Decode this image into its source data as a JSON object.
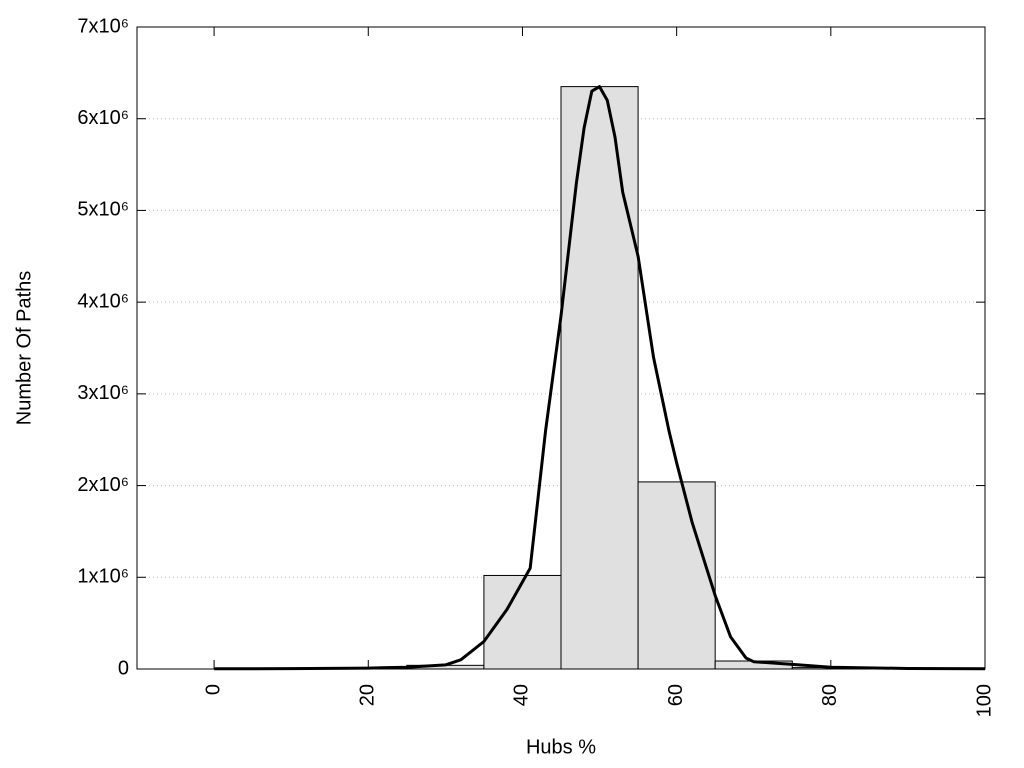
{
  "chart_data": {
    "type": "histogram",
    "xlabel": "Hubs %",
    "ylabel": "Number Of Paths",
    "bins": [
      5,
      15,
      25,
      35,
      45,
      55,
      65,
      75,
      85,
      95
    ],
    "values": [
      2000,
      8000,
      40000,
      1020000,
      6350000,
      2040000,
      87000,
      15000,
      3000
    ],
    "color": "#e0e0e0",
    "edgecolor": "#000000",
    "line": {
      "color": "#000000",
      "x": [
        0,
        10,
        20,
        25,
        30,
        32,
        35,
        38,
        40,
        41,
        43,
        45,
        47,
        48,
        49,
        50,
        51,
        52,
        53,
        55,
        57,
        59,
        60,
        62,
        65,
        67,
        69,
        70,
        75,
        80,
        90,
        100
      ],
      "values": [
        2000,
        4000,
        10000,
        20000,
        45000,
        100000,
        300000,
        650000,
        950000,
        1100000,
        2600000,
        3850000,
        5300000,
        5900000,
        6300000,
        6350000,
        6200000,
        5800000,
        5200000,
        4500000,
        3400000,
        2600000,
        2250000,
        1600000,
        800000,
        350000,
        120000,
        80000,
        50000,
        20000,
        5000,
        2000
      ]
    },
    "xlim": [
      -10,
      100
    ],
    "ylim": [
      0,
      7000000
    ],
    "xticks": [
      0,
      20,
      40,
      60,
      80,
      100
    ],
    "yticks": [
      0,
      {
        "value": 1000000,
        "label": "1x10⁶"
      },
      {
        "value": 2000000,
        "label": "2x10⁶"
      },
      {
        "value": 3000000,
        "label": "3x10⁶"
      },
      {
        "value": 4000000,
        "label": "4x10⁶"
      },
      {
        "value": 5000000,
        "label": "5x10⁶"
      },
      {
        "value": 6000000,
        "label": "6x10⁶"
      },
      {
        "value": 7000000,
        "label": "7x10⁶"
      }
    ],
    "grid": true
  }
}
